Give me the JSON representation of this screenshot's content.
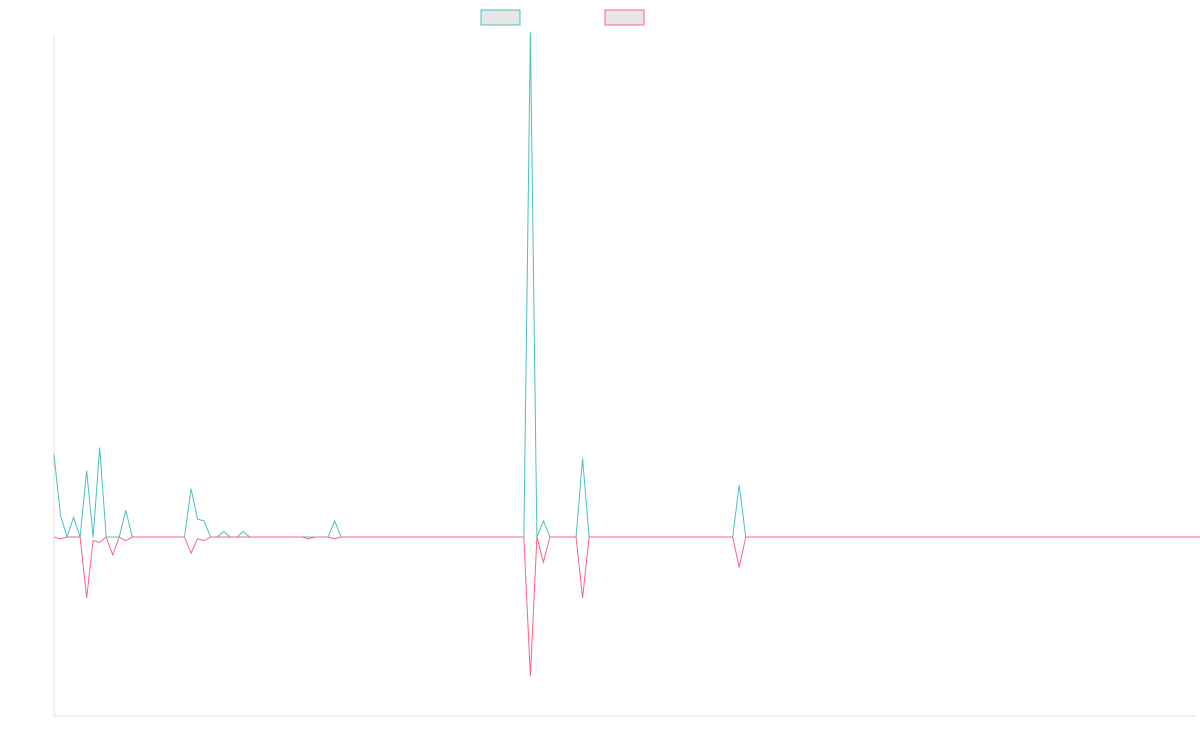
{
  "chart_data": {
    "type": "line",
    "title": "",
    "xlabel": "",
    "ylabel": "",
    "legend_placement": "top-center",
    "grid": false,
    "x_range": [
      0,
      175
    ],
    "ylim": [
      -100,
      280
    ],
    "series": [
      {
        "color": "#4bc0c0",
        "values": [
          46,
          12,
          0,
          11,
          0,
          37,
          0,
          50,
          0,
          0,
          0,
          15,
          0,
          0,
          0,
          0,
          0,
          0,
          0,
          0,
          0,
          27,
          10,
          9,
          0,
          0,
          3,
          0,
          0,
          3,
          0,
          0,
          0,
          0,
          0,
          0,
          0,
          0,
          0,
          0,
          0,
          0,
          0,
          9,
          0,
          0,
          0,
          0,
          0,
          0,
          0,
          0,
          0,
          0,
          0,
          0,
          0,
          0,
          0,
          0,
          0,
          0,
          0,
          0,
          0,
          0,
          0,
          0,
          0,
          0,
          0,
          0,
          0,
          282,
          0,
          9,
          0,
          0,
          0,
          0,
          0,
          44,
          0,
          0,
          0,
          0,
          0,
          0,
          0,
          0,
          0,
          0,
          0,
          0,
          0,
          0,
          0,
          0,
          0,
          0,
          0,
          0,
          0,
          0,
          0,
          29,
          0,
          0,
          0,
          0,
          0,
          0,
          0,
          0,
          0,
          0,
          0,
          0,
          0,
          0,
          0,
          0,
          0,
          0,
          0,
          0,
          0,
          0,
          0,
          0,
          0,
          0,
          0,
          0,
          0,
          0,
          0,
          0,
          0,
          0,
          0,
          0,
          0,
          0,
          0,
          0,
          0,
          0,
          0,
          0,
          0,
          0,
          0,
          0,
          0,
          0,
          0,
          0,
          0,
          0,
          0,
          0,
          0,
          0,
          0,
          0,
          0,
          0,
          0,
          0,
          0,
          0,
          0,
          0,
          0,
          0,
          0,
          0,
          0,
          0,
          0,
          0,
          0
        ]
      },
      {
        "color": "#ff6384",
        "values": [
          0,
          -1,
          0,
          0,
          0,
          -34,
          -2,
          -3,
          0,
          -10,
          0,
          -2,
          0,
          0,
          0,
          0,
          0,
          0,
          0,
          0,
          0,
          -9,
          -1,
          -2,
          0,
          0,
          0,
          0,
          0,
          0,
          0,
          0,
          0,
          0,
          0,
          0,
          0,
          0,
          0,
          -1,
          0,
          0,
          0,
          -1,
          0,
          0,
          0,
          0,
          0,
          0,
          0,
          0,
          0,
          0,
          0,
          0,
          0,
          0,
          0,
          0,
          0,
          0,
          0,
          0,
          0,
          0,
          0,
          0,
          0,
          0,
          0,
          0,
          0,
          -78,
          0,
          -14,
          0,
          0,
          0,
          0,
          0,
          -34,
          0,
          0,
          0,
          0,
          0,
          0,
          0,
          0,
          0,
          0,
          0,
          0,
          0,
          0,
          0,
          0,
          0,
          0,
          0,
          0,
          0,
          0,
          0,
          -17,
          0,
          0,
          0,
          0,
          0,
          0,
          0,
          0,
          0,
          0,
          0,
          0,
          0,
          0,
          0,
          0,
          0,
          0,
          0,
          0,
          0,
          0,
          0,
          0,
          0,
          0,
          0,
          0,
          0,
          0,
          0,
          0,
          0,
          0,
          0,
          0,
          0,
          0,
          0,
          0,
          0,
          0,
          0,
          0,
          0,
          0,
          0,
          0,
          0,
          0,
          0,
          0,
          0,
          0,
          0,
          0,
          0,
          0,
          0,
          0,
          0,
          0,
          0,
          0,
          0,
          0,
          0,
          0,
          0,
          0,
          0,
          0,
          0,
          0,
          0,
          0,
          0
        ]
      }
    ]
  }
}
